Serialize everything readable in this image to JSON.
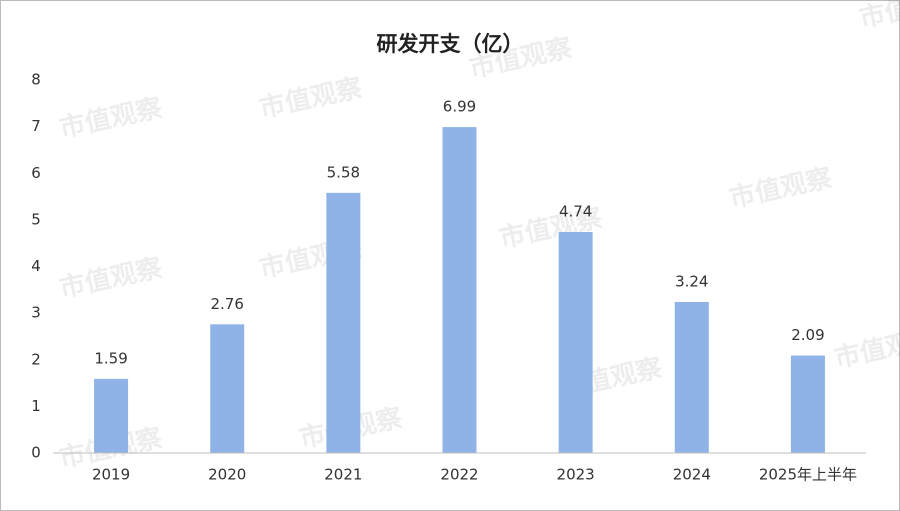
{
  "chart_data": {
    "type": "bar",
    "title": "研发开支（亿）",
    "categories": [
      "2019",
      "2020",
      "2021",
      "2022",
      "2023",
      "2024",
      "2025年上半年"
    ],
    "values": [
      1.59,
      2.76,
      5.58,
      6.99,
      4.74,
      3.24,
      2.09
    ],
    "color": "#8fb3e6",
    "ylim": [
      0,
      8
    ],
    "yticks": [
      0,
      1,
      2,
      3,
      4,
      5,
      6,
      7,
      8
    ],
    "grid": false,
    "watermark": "市值观察"
  }
}
